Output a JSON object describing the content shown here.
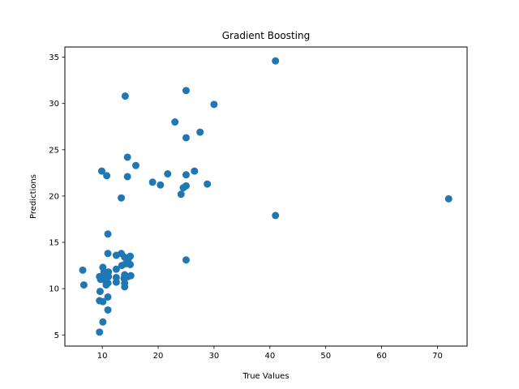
{
  "chart_data": {
    "type": "scatter",
    "title": "Gradient Boosting",
    "xlabel": "True Values",
    "ylabel": "Predictions",
    "xlim": [
      3.3,
      75.3
    ],
    "ylim": [
      3.8,
      36.1
    ],
    "xticks": [
      10,
      20,
      30,
      40,
      50,
      60,
      70
    ],
    "yticks": [
      5,
      10,
      15,
      20,
      25,
      30,
      35
    ],
    "grid": false,
    "marker_color": "#1f77b4",
    "points": [
      [
        41.0,
        34.6
      ],
      [
        25.0,
        31.4
      ],
      [
        14.1,
        30.8
      ],
      [
        30.0,
        29.9
      ],
      [
        23.0,
        28.0
      ],
      [
        27.5,
        26.9
      ],
      [
        25.0,
        26.3
      ],
      [
        14.5,
        24.2
      ],
      [
        16.0,
        23.3
      ],
      [
        9.9,
        22.7
      ],
      [
        10.8,
        22.2
      ],
      [
        14.5,
        22.1
      ],
      [
        21.7,
        22.4
      ],
      [
        25.0,
        22.3
      ],
      [
        26.5,
        22.7
      ],
      [
        19.0,
        21.5
      ],
      [
        20.4,
        21.2
      ],
      [
        25.0,
        21.1
      ],
      [
        28.8,
        21.3
      ],
      [
        24.5,
        20.9
      ],
      [
        24.1,
        20.2
      ],
      [
        13.4,
        19.8
      ],
      [
        72.0,
        19.7
      ],
      [
        41.0,
        17.9
      ],
      [
        11.0,
        15.9
      ],
      [
        11.0,
        13.8
      ],
      [
        12.5,
        13.6
      ],
      [
        13.4,
        13.8
      ],
      [
        14.0,
        13.4
      ],
      [
        14.6,
        13.1
      ],
      [
        15.0,
        13.5
      ],
      [
        15.0,
        12.6
      ],
      [
        14.2,
        12.7
      ],
      [
        13.5,
        12.5
      ],
      [
        25.0,
        13.1
      ],
      [
        12.5,
        12.1
      ],
      [
        6.5,
        12.0
      ],
      [
        10.1,
        12.3
      ],
      [
        10.3,
        11.8
      ],
      [
        11.1,
        11.8
      ],
      [
        9.5,
        11.3
      ],
      [
        9.7,
        11.0
      ],
      [
        10.3,
        11.2
      ],
      [
        11.1,
        11.3
      ],
      [
        12.5,
        11.2
      ],
      [
        14.0,
        11.5
      ],
      [
        14.6,
        11.3
      ],
      [
        15.1,
        11.4
      ],
      [
        10.5,
        10.9
      ],
      [
        11.0,
        10.6
      ],
      [
        12.5,
        10.7
      ],
      [
        14.0,
        10.6
      ],
      [
        14.0,
        10.2
      ],
      [
        6.7,
        10.4
      ],
      [
        9.6,
        9.7
      ],
      [
        11.0,
        9.1
      ],
      [
        9.5,
        8.7
      ],
      [
        10.1,
        8.6
      ],
      [
        11.0,
        7.7
      ],
      [
        10.1,
        6.4
      ],
      [
        9.5,
        5.3
      ],
      [
        10.7,
        10.4
      ],
      [
        13.9,
        11.1
      ]
    ]
  }
}
